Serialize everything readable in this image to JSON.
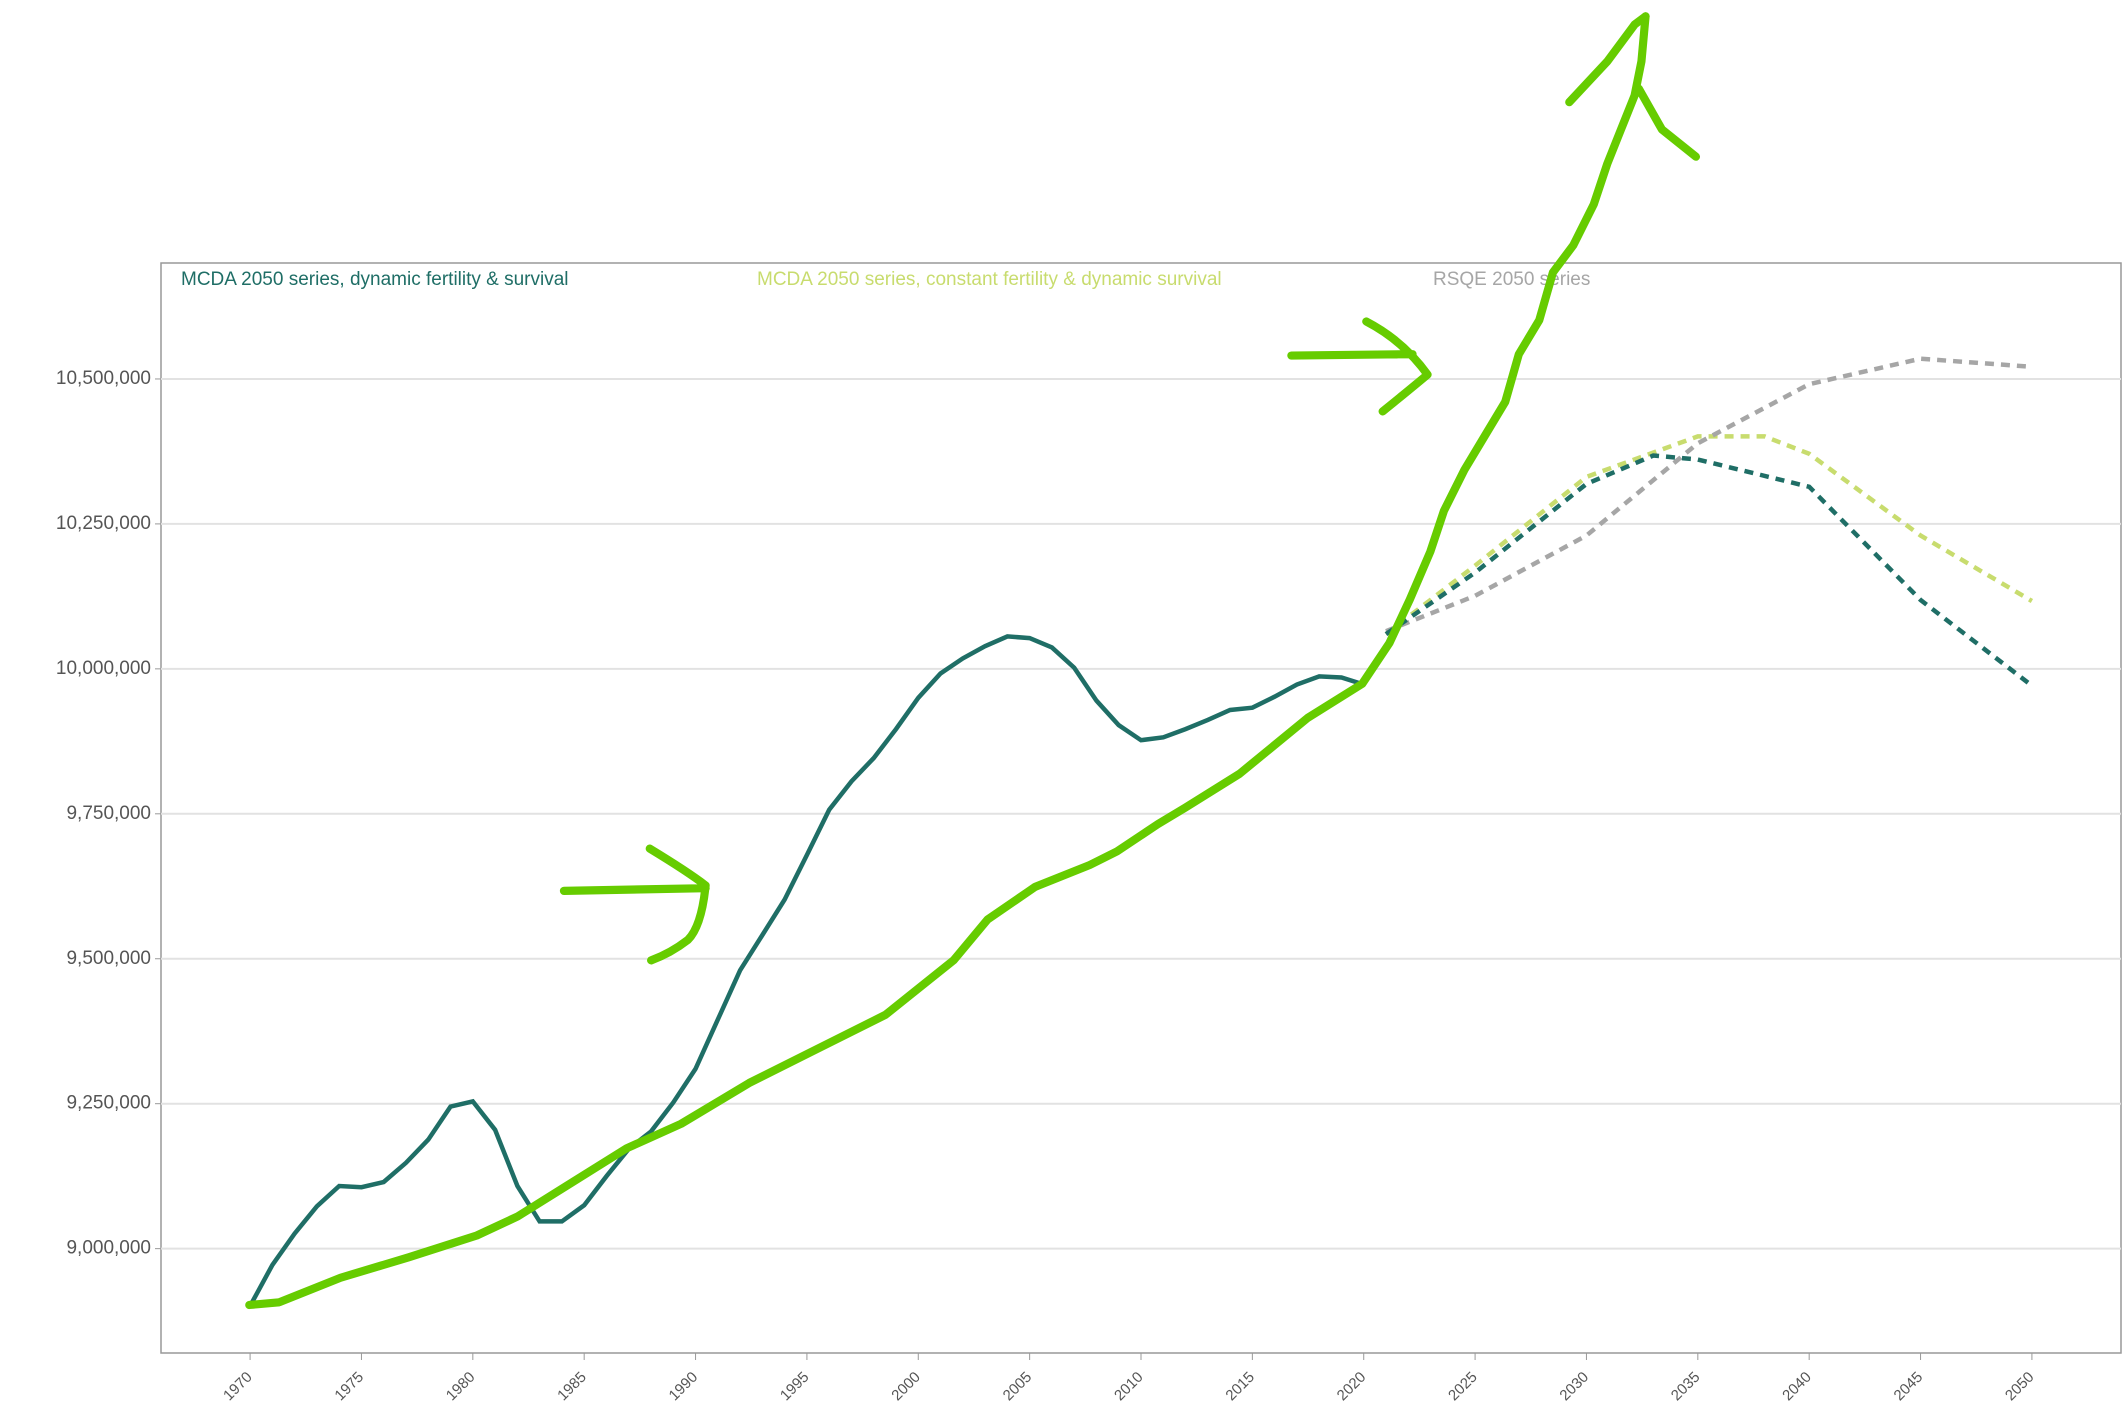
{
  "chart_data": {
    "type": "line",
    "series": [
      {
        "name": "MCDA 2050 series, dynamic fertility & survival",
        "color": "#1f6e66",
        "dashed": false,
        "x": [
          1970,
          1971,
          1972,
          1973,
          1974,
          1975,
          1976,
          1977,
          1978,
          1979,
          1980,
          1981,
          1982,
          1983,
          1984,
          1985,
          1986,
          1987,
          1988,
          1989,
          1990,
          1991,
          1992,
          1993,
          1994,
          1995,
          1996,
          1997,
          1998,
          1999,
          2000,
          2001,
          2002,
          2003,
          2004,
          2005,
          2006,
          2007,
          2008,
          2009,
          2010,
          2011,
          2012,
          2013,
          2014,
          2015,
          2016,
          2017,
          2018,
          2019,
          2020
        ],
        "values": [
          8901000,
          8972000,
          9026000,
          9073000,
          9108000,
          9106000,
          9115000,
          9148000,
          9188000,
          9245000,
          9254000,
          9205000,
          9108000,
          9047000,
          9047000,
          9075000,
          9125000,
          9172000,
          9202000,
          9252000,
          9310000,
          9395000,
          9480000,
          9541000,
          9602000,
          9679000,
          9757000,
          9806000,
          9846000,
          9896000,
          9950000,
          9992000,
          10018000,
          10039000,
          10056000,
          10053000,
          10037000,
          10002000,
          9945000,
          9903000,
          9877000,
          9882000,
          9896000,
          9912000,
          9929000,
          9933000,
          9952000,
          9973000,
          9987000,
          9985000,
          9973000
        ]
      },
      {
        "name": "MCDA 2050 series, constant fertility & dynamic survival",
        "color": "#c8dc6e",
        "dashed": true,
        "x": [
          2021,
          2025,
          2030,
          2035,
          2038,
          2040,
          2045,
          2050
        ],
        "values": [
          10060000,
          10178000,
          10331000,
          10401000,
          10401000,
          10371000,
          10230000,
          10117000
        ]
      },
      {
        "name": "RSQE 2050 series",
        "color": "#a6a6a6",
        "dashed": true,
        "x": [
          2021,
          2025,
          2030,
          2035,
          2040,
          2045,
          2050
        ],
        "values": [
          10065000,
          10126000,
          10230000,
          10389000,
          10491000,
          10535000,
          10521000
        ]
      }
    ],
    "projection": {
      "color": "#1f6e66",
      "x": [
        2021,
        2025,
        2030,
        2033,
        2035,
        2040,
        2045,
        2050
      ],
      "values": [
        10060000,
        10166000,
        10319000,
        10368000,
        10361000,
        10314000,
        10119000,
        9971000
      ]
    },
    "xlim": [
      1966,
      2054
    ],
    "xticks": [
      1970,
      1975,
      1980,
      1985,
      1990,
      1995,
      2000,
      2005,
      2010,
      2015,
      2020,
      2025,
      2030,
      2035,
      2040,
      2045,
      2050
    ],
    "ylim": [
      8820000,
      10700000
    ],
    "yticks": [
      {
        "value": 9000000,
        "label": "9,000,000"
      },
      {
        "value": 9250000,
        "label": "9,250,000"
      },
      {
        "value": 9500000,
        "label": "9,500,000"
      },
      {
        "value": 9750000,
        "label": "9,750,000"
      },
      {
        "value": 10000000,
        "label": "10,000,000"
      },
      {
        "value": 10250000,
        "label": "10,250,000"
      },
      {
        "value": 10500000,
        "label": "10,500,000"
      }
    ],
    "grid": true
  }
}
